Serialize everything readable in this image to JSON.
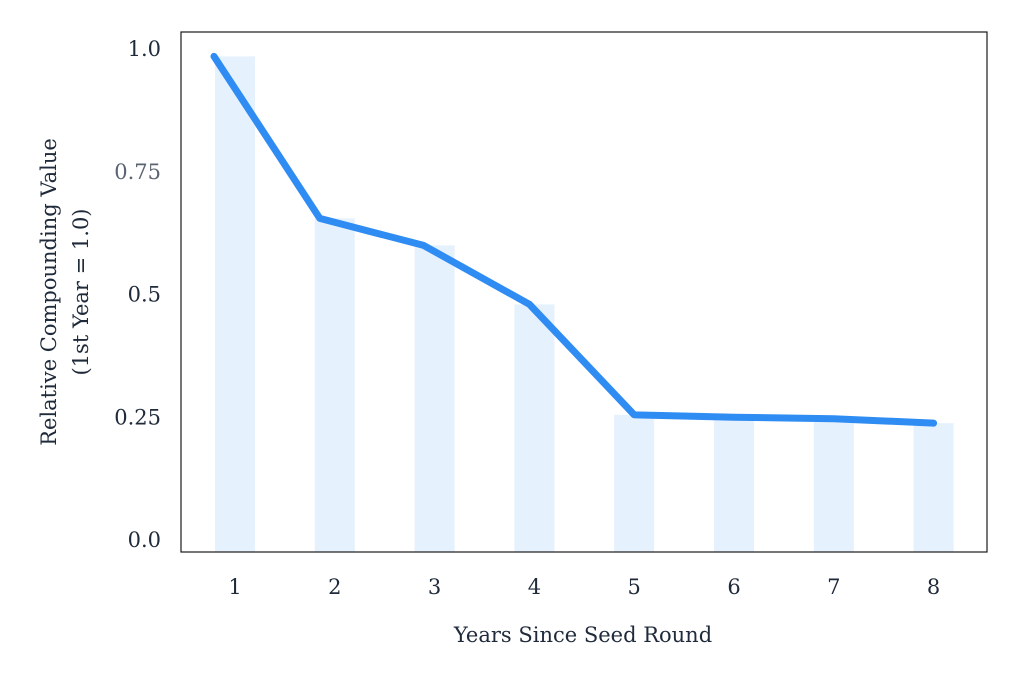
{
  "chart_data": {
    "type": "line",
    "xlabel": "Years Since Seed Round",
    "ylabel": "Relative Compounding  Value",
    "ylabel_sub": "(1st Year = 1.0)",
    "x": [
      1,
      2,
      3,
      4,
      5,
      6,
      7,
      8
    ],
    "x_tick_labels": [
      "1",
      "2",
      "3",
      "4",
      "5",
      "6",
      "7",
      "8"
    ],
    "y_ticks": [
      0.0,
      0.25,
      0.5,
      0.75,
      1.0
    ],
    "y_tick_labels": [
      "0.0",
      "0.25",
      "0.5",
      "0.75",
      "1.0"
    ],
    "ylim": [
      0.0,
      1.0
    ],
    "series": [
      {
        "values": [
          0.985,
          0.655,
          0.6,
          0.48,
          0.255,
          0.25,
          0.247,
          0.238
        ]
      }
    ],
    "bars": [
      0.985,
      0.655,
      0.6,
      0.48,
      0.255,
      0.25,
      0.247,
      0.238
    ],
    "grid": false,
    "line_color": "#2f8cf3",
    "bar_color": "#e6f1fe",
    "frame_color": "#1a1a1a"
  }
}
